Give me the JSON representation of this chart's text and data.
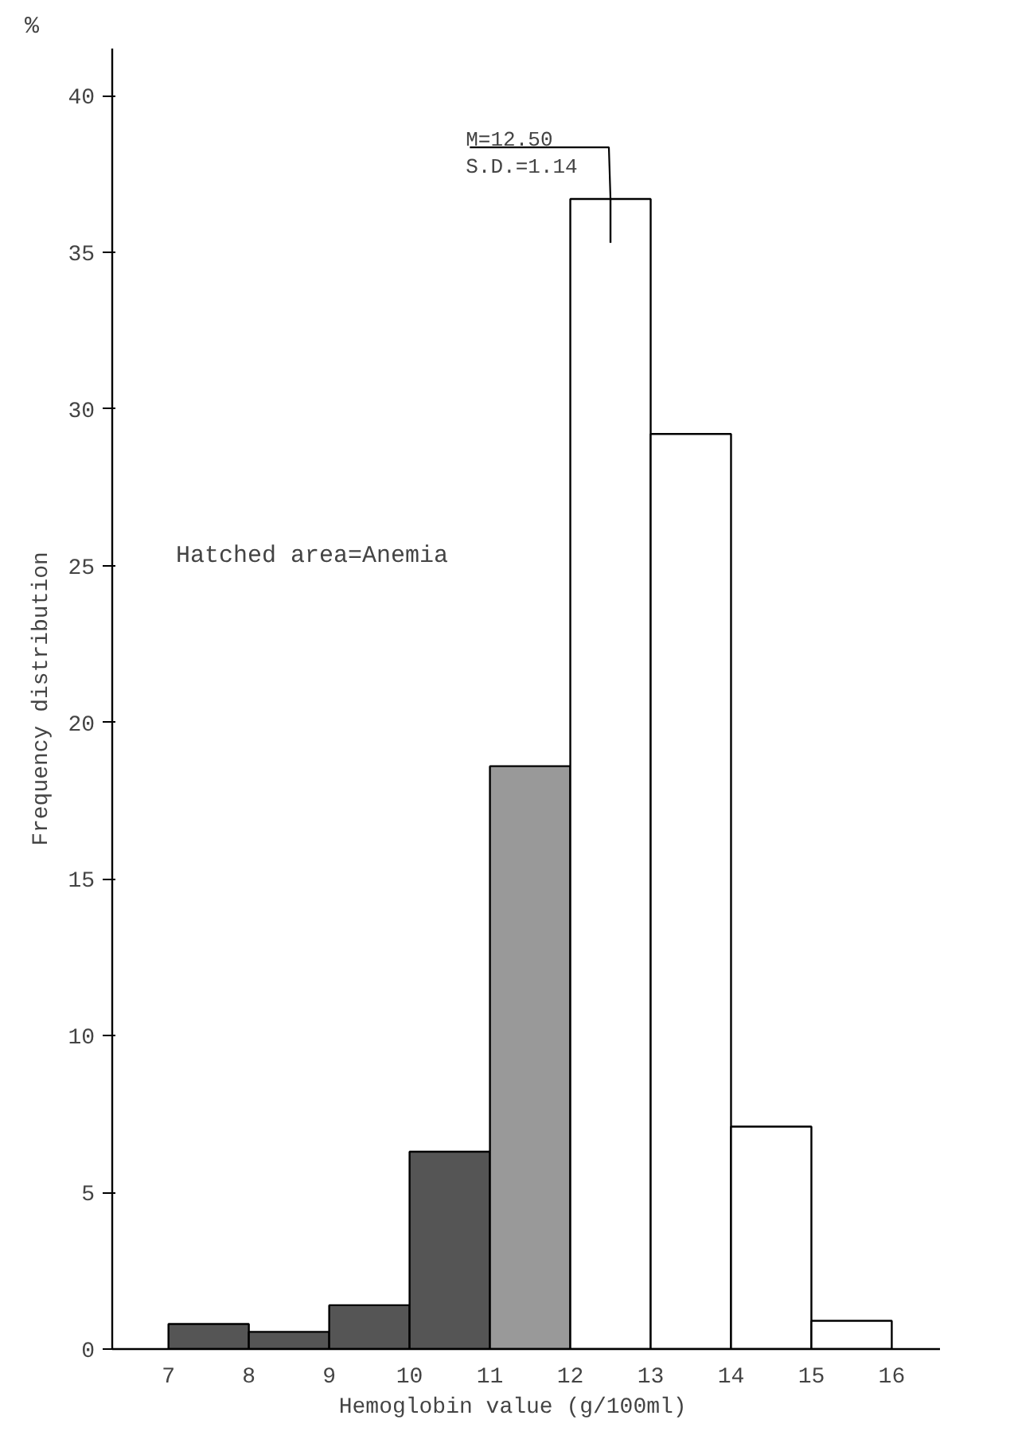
{
  "chart_data": {
    "type": "histogram",
    "xlabel": "Hemoglobin value   (g/100ml)",
    "ylabel": "Frequency distribution",
    "bins": [
      7,
      8,
      9,
      10,
      11,
      12,
      13,
      14,
      15,
      16
    ],
    "values": [
      0.8,
      0.55,
      1.4,
      6.3,
      18.6,
      36.7,
      29.2,
      7.1,
      0.9
    ],
    "colors": [
      "#555555",
      "#555555",
      "#555555",
      "#555555",
      "#999999",
      "#ffffff",
      "#ffffff",
      "#ffffff",
      "#ffffff"
    ],
    "errors": [
      null,
      null,
      null,
      null,
      null,
      [
        35.3,
        36.7
      ],
      null,
      null,
      null
    ],
    "xlim": [
      6.3,
      16.6
    ],
    "ylim": [
      0,
      41.5
    ],
    "xticks": [
      7,
      8,
      9,
      10,
      11,
      12,
      13,
      14,
      15,
      16
    ],
    "yticks": [
      0,
      5,
      10,
      15,
      20,
      25,
      30,
      35,
      40
    ],
    "grid": false,
    "annotations": [
      "%",
      {
        "text": "M=12.50\nS.D.=1.14",
        "x": 12.5,
        "y": 36.7
      },
      "Hatched area=Anemia"
    ]
  }
}
